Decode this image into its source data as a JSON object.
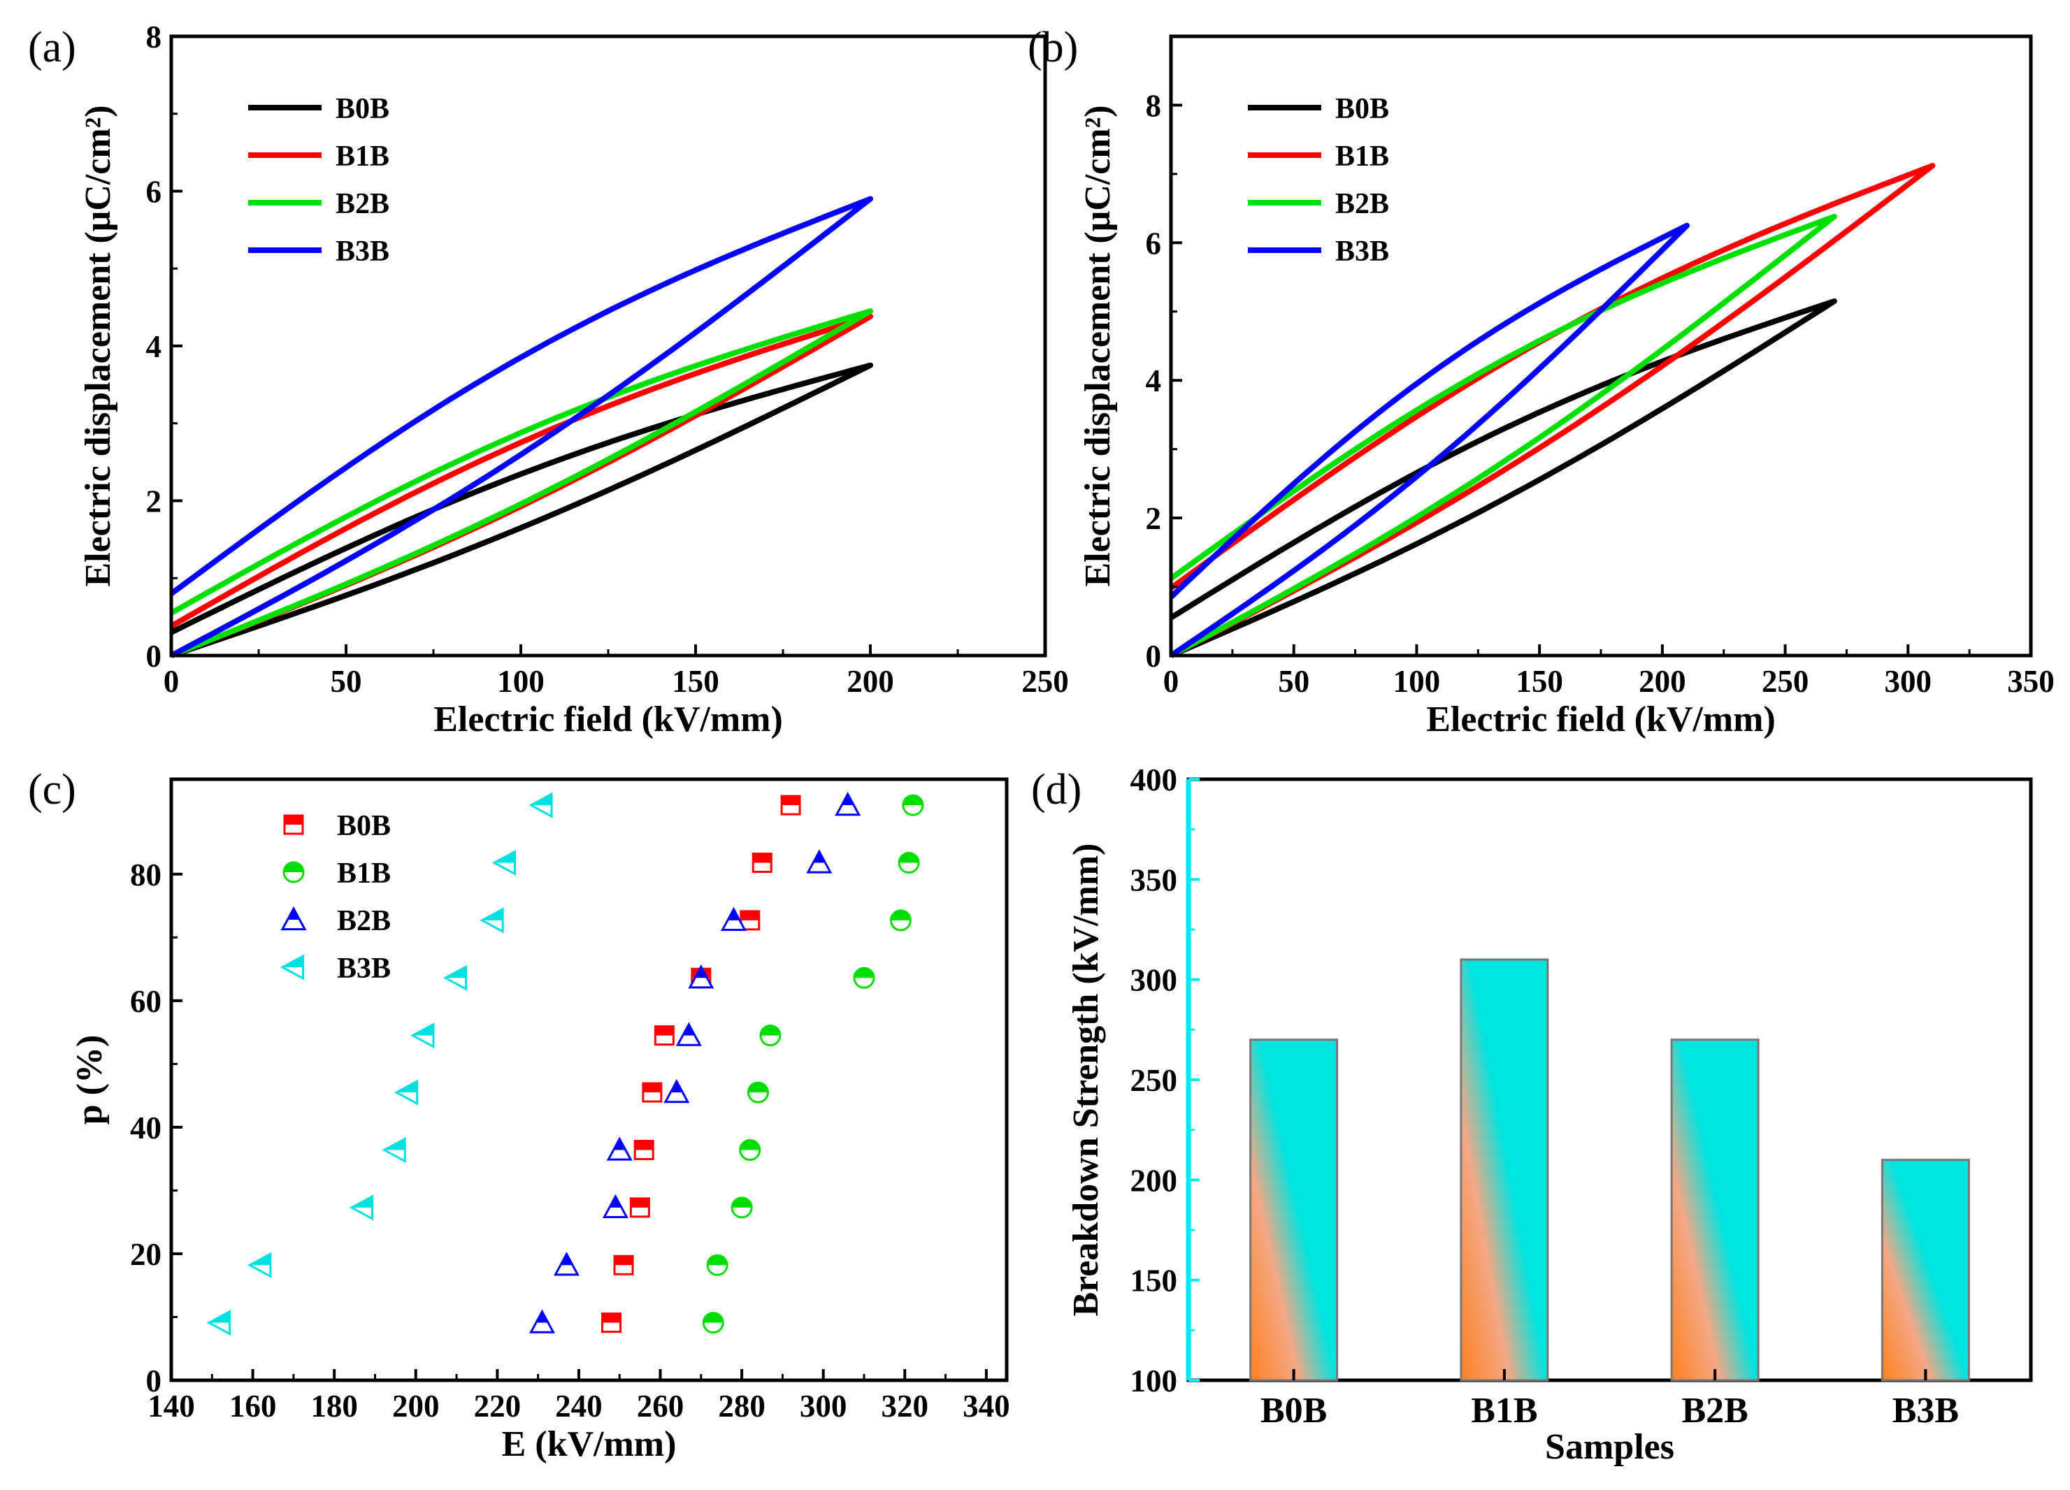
{
  "chart_data": [
    {
      "id": "a",
      "type": "line",
      "panel_label": "(a)",
      "xlabel": "Electric field (kV/mm)",
      "ylabel": "Electric displacement (μC/cm²)",
      "xlim": [
        0,
        250
      ],
      "ylim": [
        0,
        8
      ],
      "xticks": [
        0,
        50,
        100,
        150,
        200,
        250
      ],
      "yticks": [
        0,
        2,
        4,
        6,
        8
      ],
      "legend_position": "top-left",
      "series": [
        {
          "name": "B0B",
          "color": "#000000",
          "emax": 200,
          "dmax": 3.75,
          "dr": 0.3
        },
        {
          "name": "B1B",
          "color": "#ff0000",
          "emax": 200,
          "dmax": 4.38,
          "dr": 0.38
        },
        {
          "name": "B2B",
          "color": "#00e000",
          "emax": 200,
          "dmax": 4.45,
          "dr": 0.55
        },
        {
          "name": "B3B",
          "color": "#0000ff",
          "emax": 200,
          "dmax": 5.9,
          "dr": 0.8
        }
      ]
    },
    {
      "id": "b",
      "type": "line",
      "panel_label": "(b)",
      "xlabel": "Electric field (kV/mm)",
      "ylabel": "Electric displacement (μC/cm²)",
      "xlim": [
        0,
        350
      ],
      "ylim": [
        0,
        9
      ],
      "xticks": [
        0,
        50,
        100,
        150,
        200,
        250,
        300,
        350
      ],
      "yticks": [
        0,
        2,
        4,
        6,
        8
      ],
      "legend_position": "top-left",
      "series": [
        {
          "name": "B0B",
          "color": "#000000",
          "emax": 270,
          "dmax": 5.15,
          "dr": 0.55
        },
        {
          "name": "B1B",
          "color": "#ff0000",
          "emax": 310,
          "dmax": 7.12,
          "dr": 0.98
        },
        {
          "name": "B2B",
          "color": "#00e000",
          "emax": 270,
          "dmax": 6.38,
          "dr": 1.12
        },
        {
          "name": "B3B",
          "color": "#0000ff",
          "emax": 210,
          "dmax": 6.25,
          "dr": 0.85
        }
      ]
    },
    {
      "id": "c",
      "type": "scatter",
      "panel_label": "(c)",
      "xlabel": "E (kV/mm)",
      "ylabel": "p (%)",
      "xlim": [
        140,
        345
      ],
      "ylim": [
        0,
        95
      ],
      "xticks": [
        140,
        160,
        180,
        200,
        220,
        240,
        260,
        280,
        300,
        320,
        340
      ],
      "yticks": [
        0,
        20,
        40,
        60,
        80
      ],
      "legend_position": "top-left",
      "p_values": [
        9.1,
        18.2,
        27.3,
        36.4,
        45.5,
        54.5,
        63.6,
        72.7,
        81.8,
        90.9
      ],
      "series": [
        {
          "name": "B0B",
          "marker": "square-half",
          "color": "#ff0000",
          "values": [
            248,
            251,
            255,
            256,
            258,
            261,
            270,
            282,
            285,
            292
          ]
        },
        {
          "name": "B1B",
          "marker": "circle-half",
          "color": "#00dd00",
          "values": [
            273,
            274,
            280,
            282,
            284,
            287,
            310,
            319,
            321,
            322
          ]
        },
        {
          "name": "B2B",
          "marker": "triangle-up-half",
          "color": "#0000ff",
          "values": [
            231,
            237,
            249,
            250,
            264,
            267,
            270,
            278,
            299,
            306
          ]
        },
        {
          "name": "B3B",
          "marker": "triangle-left-half",
          "color": "#00e0e0",
          "values": [
            152,
            162,
            187,
            195,
            198,
            202,
            210,
            219,
            222,
            231
          ]
        }
      ]
    },
    {
      "id": "d",
      "type": "bar",
      "panel_label": "(d)",
      "xlabel": "Samples",
      "ylabel": "Breakdown Strength (kV/mm)",
      "ylim": [
        100,
        400
      ],
      "yticks": [
        100,
        150,
        200,
        250,
        300,
        350,
        400
      ],
      "categories": [
        "B0B",
        "B1B",
        "B2B",
        "B3B"
      ],
      "values": [
        270,
        310,
        270,
        210
      ],
      "gradient_colors": [
        "#ff8020",
        "#00e4e0"
      ],
      "axis_color": "#00e8f0"
    }
  ]
}
